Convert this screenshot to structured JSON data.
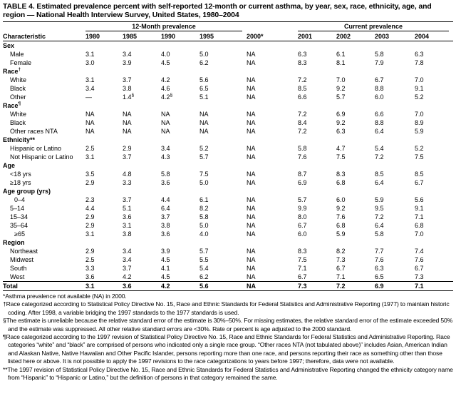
{
  "title": "TABLE 4. Estimated prevalence percent with self-reported 12-month or current asthma, by year, sex, race, ethnicity, age, and region — National Health Interview Survey, United States, 1980–2004",
  "group_headers": {
    "twelve_month": "12-Month prevalence",
    "current": "Current prevalence"
  },
  "columns": [
    "Characteristic",
    "1980",
    "1985",
    "1990",
    "1995",
    "2000*",
    "2001",
    "2002",
    "2003",
    "2004"
  ],
  "rows": [
    {
      "type": "section",
      "label": "Sex"
    },
    {
      "label": "Male",
      "values": [
        "3.1",
        "3.4",
        "4.0",
        "5.0",
        "NA",
        "6.3",
        "6.1",
        "5.8",
        "6.3"
      ]
    },
    {
      "label": "Female",
      "values": [
        "3.0",
        "3.9",
        "4.5",
        "6.2",
        "NA",
        "8.3",
        "8.1",
        "7.9",
        "7.8"
      ]
    },
    {
      "type": "section",
      "label": "Race",
      "sup": "†"
    },
    {
      "label": "White",
      "values": [
        "3.1",
        "3.7",
        "4.2",
        "5.6",
        "NA",
        "7.2",
        "7.0",
        "6.7",
        "7.0"
      ]
    },
    {
      "label": "Black",
      "values": [
        "3.4",
        "3.8",
        "4.6",
        "6.5",
        "NA",
        "8.5",
        "9.2",
        "8.8",
        "9.1"
      ]
    },
    {
      "label": "Other",
      "values": [
        "—",
        "1.4§",
        "4.2§",
        "5.1",
        "NA",
        "6.6",
        "5.7",
        "6.0",
        "5.2"
      ]
    },
    {
      "type": "section",
      "label": "Race",
      "sup": "¶"
    },
    {
      "label": "White",
      "values": [
        "NA",
        "NA",
        "NA",
        "NA",
        "NA",
        "7.2",
        "6.9",
        "6.6",
        "7.0"
      ]
    },
    {
      "label": "Black",
      "values": [
        "NA",
        "NA",
        "NA",
        "NA",
        "NA",
        "8.4",
        "9.2",
        "8.8",
        "8.9"
      ]
    },
    {
      "label": "Other races NTA",
      "values": [
        "NA",
        "NA",
        "NA",
        "NA",
        "NA",
        "7.2",
        "6.3",
        "6.4",
        "5.9"
      ]
    },
    {
      "type": "section",
      "label": "Ethnicity**"
    },
    {
      "label": "Hispanic or Latino",
      "values": [
        "2.5",
        "2.9",
        "3.4",
        "5.2",
        "NA",
        "5.8",
        "4.7",
        "5.4",
        "5.2"
      ]
    },
    {
      "label": "Not Hispanic or Latino",
      "values": [
        "3.1",
        "3.7",
        "4.3",
        "5.7",
        "NA",
        "7.6",
        "7.5",
        "7.2",
        "7.5"
      ]
    },
    {
      "type": "section",
      "label": "Age"
    },
    {
      "label": "<18 yrs",
      "values": [
        "3.5",
        "4.8",
        "5.8",
        "7.5",
        "NA",
        "8.7",
        "8.3",
        "8.5",
        "8.5"
      ]
    },
    {
      "label": "≥18 yrs",
      "values": [
        "2.9",
        "3.3",
        "3.6",
        "5.0",
        "NA",
        "6.9",
        "6.8",
        "6.4",
        "6.7"
      ]
    },
    {
      "type": "section",
      "label": "Age group (yrs)"
    },
    {
      "label": "0–4",
      "indent": 2,
      "values": [
        "2.3",
        "3.7",
        "4.4",
        "6.1",
        "NA",
        "5.7",
        "6.0",
        "5.9",
        "5.6"
      ]
    },
    {
      "label": "5–14",
      "values": [
        "4.4",
        "5.1",
        "6.4",
        "8.2",
        "NA",
        "9.9",
        "9.2",
        "9.5",
        "9.1"
      ]
    },
    {
      "label": "15–34",
      "values": [
        "2.9",
        "3.6",
        "3.7",
        "5.8",
        "NA",
        "8.0",
        "7.6",
        "7.2",
        "7.1"
      ]
    },
    {
      "label": "35–64",
      "values": [
        "2.9",
        "3.1",
        "3.8",
        "5.0",
        "NA",
        "6.7",
        "6.8",
        "6.4",
        "6.8"
      ]
    },
    {
      "label": "≥65",
      "indent": 2,
      "values": [
        "3.1",
        "3.8",
        "3.6",
        "4.0",
        "NA",
        "6.0",
        "5.9",
        "5.8",
        "7.0"
      ]
    },
    {
      "type": "section",
      "label": "Region"
    },
    {
      "label": "Northeast",
      "values": [
        "2.9",
        "3.4",
        "3.9",
        "5.7",
        "NA",
        "8.3",
        "8.2",
        "7.7",
        "7.4"
      ]
    },
    {
      "label": "Midwest",
      "values": [
        "2.5",
        "3.4",
        "4.5",
        "5.5",
        "NA",
        "7.5",
        "7.3",
        "7.6",
        "7.6"
      ]
    },
    {
      "label": "South",
      "values": [
        "3.3",
        "3.7",
        "4.1",
        "5.4",
        "NA",
        "7.1",
        "6.7",
        "6.3",
        "6.7"
      ]
    },
    {
      "label": "West",
      "values": [
        "3.6",
        "4.2",
        "4.5",
        "6.2",
        "NA",
        "6.7",
        "7.1",
        "6.5",
        "7.3"
      ]
    },
    {
      "type": "total",
      "label": "Total",
      "values": [
        "3.1",
        "3.6",
        "4.2",
        "5.6",
        "NA",
        "7.3",
        "7.2",
        "6.9",
        "7.1"
      ]
    }
  ],
  "footnotes": [
    "*Asthma prevalence not available (NA) in 2000.",
    "†Race categorized according to Statistical Policy Directive No. 15, Race and Ethnic Standards for Federal Statistics and Administrative Reporting (1977) to maintain historic coding. After 1998, a variable bridging the 1997 standards to the 1977 standards is used.",
    "§The estimate is unreliable because the relative standard error of the estimate is 30%–50%. For missing estimates, the relative standard error of the estimate exceeded 50% and the estimate was suppressed. All other relative standard errors are <30%. Rate or percent is age adjusted to the 2000 standard.",
    "¶Race categorized according to the 1997 revision of Statistical Policy Directive No. 15, Race and Ethnic Standards for Federal Statistics and Administrative Reporting. Race categories “white” and “black” are comprised of persons who indicated only a single race group. “Other races NTA (not tabulated above)” includes Asian, American Indian and Alaskan Native, Native Hawaiian and Other Pacific Islander, persons reporting more than one race, and persons reporting their race as something other than those listed here or above. It is not possible to apply the 1997 revisions to the race categorizations to years before 1997; therefore, data were not available.",
    "**The 1997 revision of Statistical Policy Directive No. 15, Race and Ethnic Standards for Federal Statistics and Administrative Reporting changed the ethnicity category name from “Hispanic” to “Hispanic or Latino,” but the definition of persons in that category remained the same."
  ]
}
